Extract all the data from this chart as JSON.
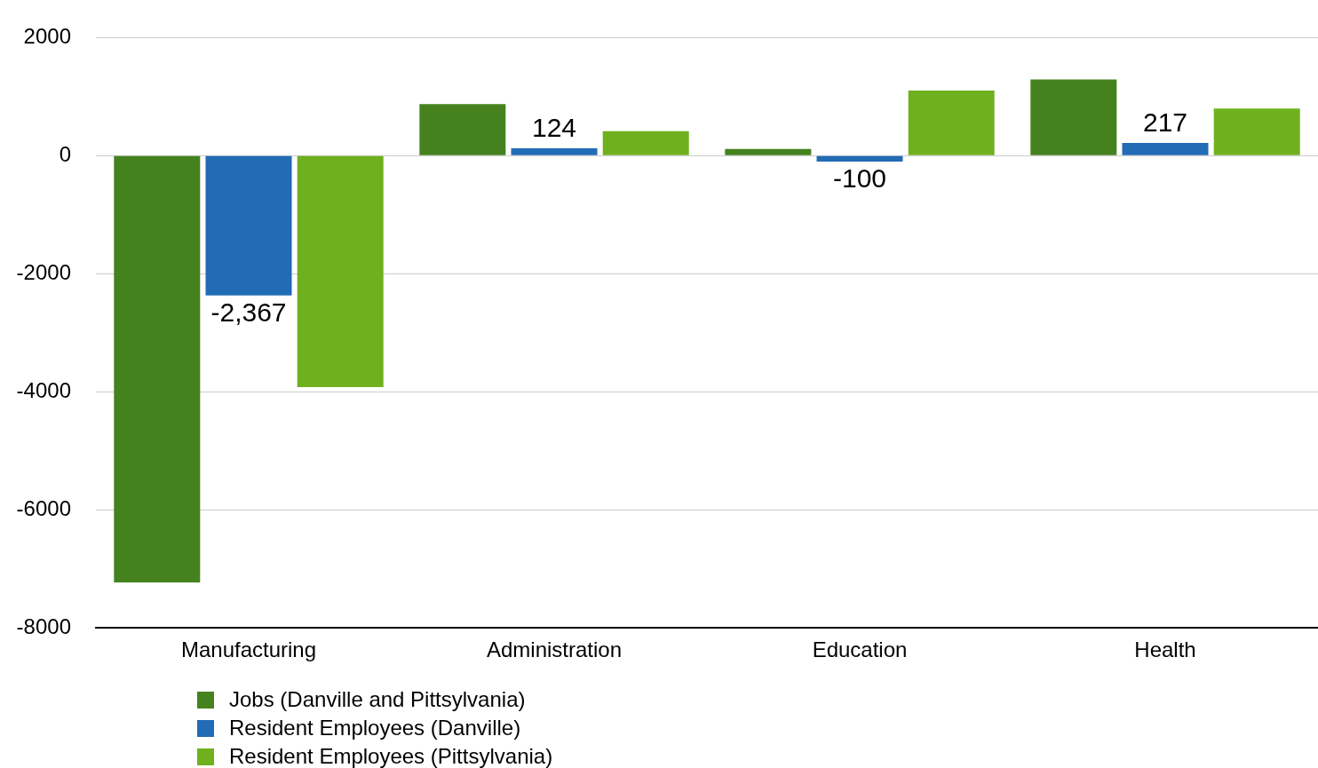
{
  "chart_data": {
    "type": "bar",
    "categories": [
      "Manufacturing",
      "Administration",
      "Education",
      "Health"
    ],
    "series": [
      {
        "name": "Jobs (Danville and Pittsylvania)",
        "color": "#45821f",
        "values": [
          -7230,
          875,
          115,
          1290
        ]
      },
      {
        "name": "Resident Employees (Danville)",
        "color": "#226bb5",
        "values": [
          -2367,
          124,
          -100,
          217
        ],
        "value_labels": [
          "-2,367",
          "124",
          "-100",
          "217"
        ]
      },
      {
        "name": "Resident Employees (Pittsylvania)",
        "color": "#6fb01f",
        "values": [
          -3920,
          415,
          1105,
          800
        ]
      }
    ],
    "ylim": [
      -8000,
      2000
    ],
    "yticks": [
      -8000,
      -6000,
      -4000,
      -2000,
      0,
      2000
    ],
    "grid": "y",
    "legend": "bottom left"
  }
}
